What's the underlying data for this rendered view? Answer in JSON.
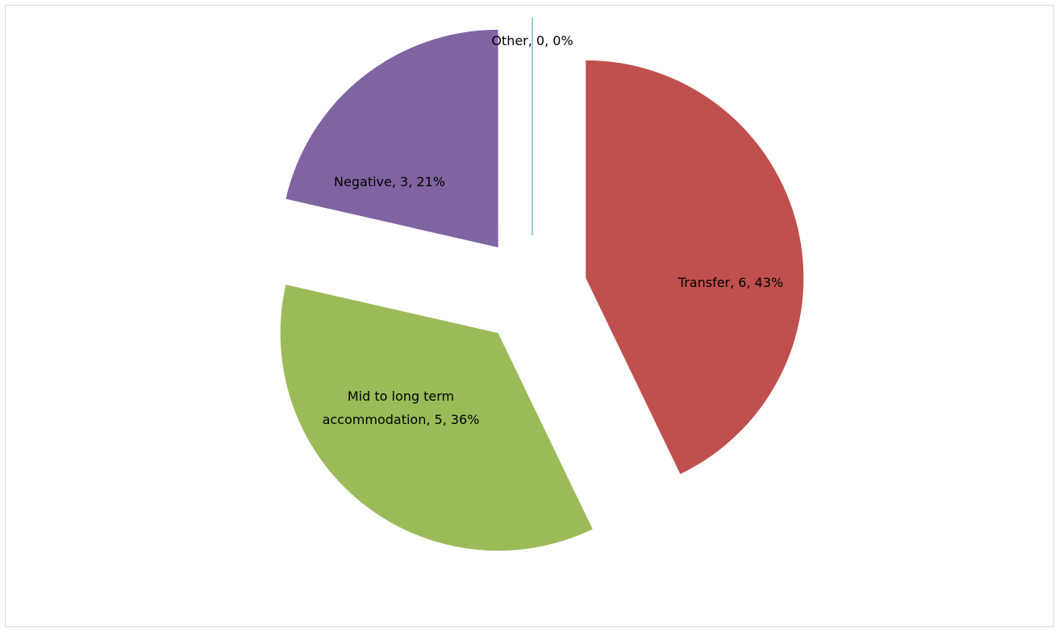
{
  "chart_data": {
    "type": "pie",
    "title": "",
    "exploded": true,
    "slices": [
      {
        "name": "Transfer",
        "value": 6,
        "percent": "43%",
        "label": "Transfer, 6, 43%",
        "color": "#C0504D"
      },
      {
        "name": "Mid to long term accommodation",
        "value": 5,
        "percent": "36%",
        "label_lines": [
          "Mid to long term",
          "accommodation, 5, 36%"
        ],
        "color": "#9BBB59"
      },
      {
        "name": "Negative",
        "value": 3,
        "percent": "21%",
        "label": "Negative, 3, 21%",
        "color": "#8064A2"
      },
      {
        "name": "Other",
        "value": 0,
        "percent": "0%",
        "label": "Other, 0, 0%",
        "color": "#4BACC6"
      }
    ]
  }
}
